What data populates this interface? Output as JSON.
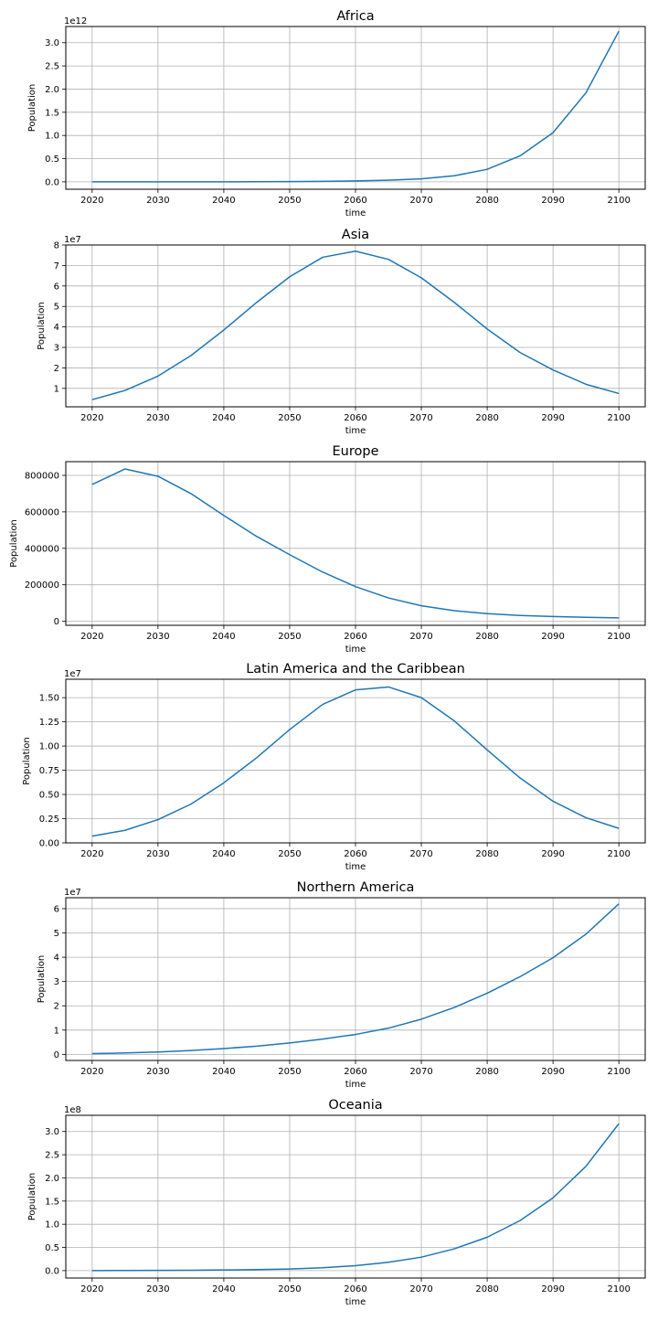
{
  "style": {
    "line_color": "#1f77b4",
    "grid": true
  },
  "chart_data": [
    {
      "type": "line",
      "title": "Africa",
      "xlabel": "time",
      "ylabel": "Population",
      "y_offset_label": "1e12",
      "xlim": [
        2016,
        2104
      ],
      "ylim": [
        -0.16,
        3.35
      ],
      "xticks": [
        2020,
        2030,
        2040,
        2050,
        2060,
        2070,
        2080,
        2090,
        2100
      ],
      "yticks": [
        0,
        0.5,
        1.0,
        1.5,
        2.0,
        2.5,
        3.0
      ],
      "yticklabels": [
        "0.0",
        "0.5",
        "1.0",
        "1.5",
        "2.0",
        "2.5",
        "3.0"
      ],
      "x": [
        2020,
        2025,
        2030,
        2035,
        2040,
        2045,
        2050,
        2055,
        2060,
        2065,
        2070,
        2075,
        2080,
        2085,
        2090,
        2095,
        2100
      ],
      "y": [
        0.0,
        0.0,
        0.0,
        0.0,
        0.0,
        0.002,
        0.005,
        0.01,
        0.02,
        0.035,
        0.065,
        0.13,
        0.27,
        0.56,
        1.06,
        1.92,
        3.25
      ]
    },
    {
      "type": "line",
      "title": "Asia",
      "xlabel": "time",
      "ylabel": "Population",
      "y_offset_label": "1e7",
      "xlim": [
        2016,
        2104
      ],
      "ylim": [
        0.1,
        8.0
      ],
      "xticks": [
        2020,
        2030,
        2040,
        2050,
        2060,
        2070,
        2080,
        2090,
        2100
      ],
      "yticks": [
        1,
        2,
        3,
        4,
        5,
        6,
        7,
        8
      ],
      "yticklabels": [
        "1",
        "2",
        "3",
        "4",
        "5",
        "6",
        "7",
        "8"
      ],
      "x": [
        2020,
        2025,
        2030,
        2035,
        2040,
        2045,
        2050,
        2055,
        2060,
        2065,
        2070,
        2075,
        2080,
        2085,
        2090,
        2095,
        2100
      ],
      "y": [
        0.45,
        0.9,
        1.6,
        2.6,
        3.85,
        5.2,
        6.45,
        7.4,
        7.7,
        7.3,
        6.4,
        5.2,
        3.9,
        2.75,
        1.9,
        1.2,
        0.75
      ]
    },
    {
      "type": "line",
      "title": "Europe",
      "xlabel": "time",
      "ylabel": "Population",
      "y_offset_label": "",
      "xlim": [
        2016,
        2104
      ],
      "ylim": [
        -22000,
        875000
      ],
      "xticks": [
        2020,
        2030,
        2040,
        2050,
        2060,
        2070,
        2080,
        2090,
        2100
      ],
      "yticks": [
        0,
        200000,
        400000,
        600000,
        800000
      ],
      "yticklabels": [
        "0",
        "200000",
        "400000",
        "600000",
        "800000"
      ],
      "x": [
        2020,
        2025,
        2030,
        2035,
        2040,
        2045,
        2050,
        2055,
        2060,
        2065,
        2070,
        2075,
        2080,
        2085,
        2090,
        2095,
        2100
      ],
      "y": [
        750000,
        835000,
        795000,
        700000,
        580000,
        465000,
        365000,
        270000,
        190000,
        128000,
        85000,
        58000,
        42000,
        32000,
        26000,
        22000,
        19000
      ]
    },
    {
      "type": "line",
      "title": "Latin America and the Caribbean",
      "xlabel": "time",
      "ylabel": "Population",
      "y_offset_label": "1e7",
      "xlim": [
        2016,
        2104
      ],
      "ylim": [
        0,
        1.69
      ],
      "xticks": [
        2020,
        2030,
        2040,
        2050,
        2060,
        2070,
        2080,
        2090,
        2100
      ],
      "yticks": [
        0,
        0.25,
        0.5,
        0.75,
        1.0,
        1.25,
        1.5
      ],
      "yticklabels": [
        "0.00",
        "0.25",
        "0.50",
        "0.75",
        "1.00",
        "1.25",
        "1.50"
      ],
      "x": [
        2020,
        2025,
        2030,
        2035,
        2040,
        2045,
        2050,
        2055,
        2060,
        2065,
        2070,
        2075,
        2080,
        2085,
        2090,
        2095,
        2100
      ],
      "y": [
        0.07,
        0.13,
        0.24,
        0.4,
        0.62,
        0.88,
        1.17,
        1.43,
        1.58,
        1.61,
        1.5,
        1.26,
        0.96,
        0.67,
        0.43,
        0.26,
        0.15
      ]
    },
    {
      "type": "line",
      "title": "Northern America",
      "xlabel": "time",
      "ylabel": "Population",
      "y_offset_label": "1e7",
      "xlim": [
        2016,
        2104
      ],
      "ylim": [
        -0.25,
        6.45
      ],
      "xticks": [
        2020,
        2030,
        2040,
        2050,
        2060,
        2070,
        2080,
        2090,
        2100
      ],
      "yticks": [
        0,
        1,
        2,
        3,
        4,
        5,
        6
      ],
      "yticklabels": [
        "0",
        "1",
        "2",
        "3",
        "4",
        "5",
        "6"
      ],
      "x": [
        2020,
        2025,
        2030,
        2035,
        2040,
        2045,
        2050,
        2055,
        2060,
        2065,
        2070,
        2075,
        2080,
        2085,
        2090,
        2095,
        2100
      ],
      "y": [
        0.03,
        0.06,
        0.1,
        0.16,
        0.24,
        0.34,
        0.47,
        0.63,
        0.82,
        1.08,
        1.45,
        1.93,
        2.52,
        3.2,
        3.98,
        4.95,
        6.2
      ]
    },
    {
      "type": "line",
      "title": "Oceania",
      "xlabel": "time",
      "ylabel": "Population",
      "y_offset_label": "1e8",
      "xlim": [
        2016,
        2104
      ],
      "ylim": [
        -0.16,
        3.35
      ],
      "xticks": [
        2020,
        2030,
        2040,
        2050,
        2060,
        2070,
        2080,
        2090,
        2100
      ],
      "yticks": [
        0,
        0.5,
        1.0,
        1.5,
        2.0,
        2.5,
        3.0
      ],
      "yticklabels": [
        "0.0",
        "0.5",
        "1.0",
        "1.5",
        "2.0",
        "2.5",
        "3.0"
      ],
      "x": [
        2020,
        2025,
        2030,
        2035,
        2040,
        2045,
        2050,
        2055,
        2060,
        2065,
        2070,
        2075,
        2080,
        2085,
        2090,
        2095,
        2100
      ],
      "y": [
        0.0,
        0.002,
        0.004,
        0.008,
        0.014,
        0.022,
        0.035,
        0.062,
        0.107,
        0.18,
        0.29,
        0.47,
        0.72,
        1.08,
        1.57,
        2.25,
        3.17
      ]
    }
  ]
}
